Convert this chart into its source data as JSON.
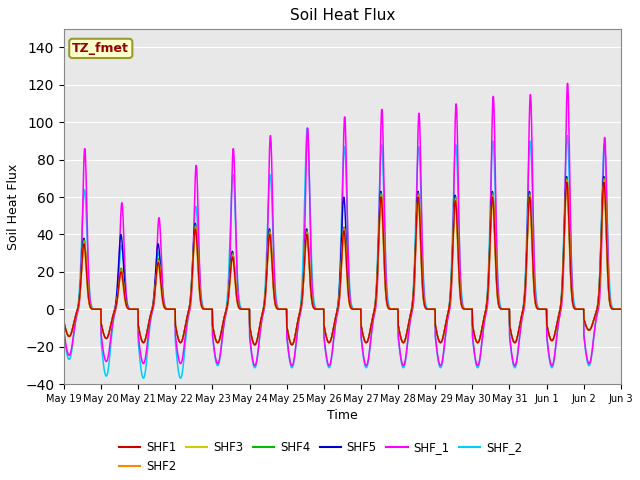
{
  "title": "Soil Heat Flux",
  "ylabel": "Soil Heat Flux",
  "xlabel": "Time",
  "annotation_text": "TZ_fmet",
  "annotation_bg": "#ffffcc",
  "annotation_border": "#999933",
  "annotation_text_color": "#990000",
  "ylim": [
    -40,
    150
  ],
  "yticks": [
    -40,
    -20,
    0,
    20,
    40,
    60,
    80,
    100,
    120,
    140
  ],
  "series_colors": {
    "SHF1": "#cc0000",
    "SHF2": "#ff8800",
    "SHF3": "#cccc00",
    "SHF4": "#00bb00",
    "SHF5": "#0000cc",
    "SHF_1": "#ff00ff",
    "SHF_2": "#00ccff"
  },
  "plot_bg": "#e8e8e8",
  "tick_labels": [
    "May 19",
    "May 20",
    "May 21",
    "May 22",
    "May 23",
    "May 24",
    "May 25",
    "May 26",
    "May 27",
    "May 28",
    "May 29",
    "May 30",
    "May 31",
    "Jun 1",
    "Jun 2",
    "Jun 3"
  ],
  "shf1_peaks": [
    35,
    20,
    25,
    43,
    28,
    40,
    40,
    42,
    60,
    60,
    58,
    60,
    60,
    68,
    68,
    0
  ],
  "shf2_peaks": [
    36,
    21,
    26,
    44,
    29,
    41,
    41,
    43,
    61,
    61,
    59,
    61,
    61,
    69,
    69,
    0
  ],
  "shf3_peaks": [
    33,
    18,
    23,
    41,
    27,
    39,
    39,
    40,
    58,
    58,
    56,
    58,
    58,
    66,
    66,
    0
  ],
  "shf4_peaks": [
    37,
    22,
    27,
    45,
    30,
    42,
    42,
    44,
    62,
    62,
    60,
    62,
    62,
    70,
    70,
    0
  ],
  "shf5_peaks": [
    38,
    40,
    35,
    46,
    31,
    43,
    43,
    60,
    63,
    63,
    61,
    63,
    63,
    71,
    71,
    0
  ],
  "shf_1_peaks": [
    86,
    57,
    49,
    77,
    86,
    93,
    97,
    103,
    107,
    105,
    110,
    114,
    115,
    121,
    92,
    0
  ],
  "shf_2_peaks": [
    64,
    34,
    30,
    55,
    72,
    72,
    97,
    87,
    88,
    87,
    88,
    90,
    90,
    93,
    88,
    0
  ],
  "shf1_nights": [
    -13,
    -14,
    -16,
    -16,
    -16,
    -17,
    -17,
    -16,
    -16,
    -16,
    -16,
    -16,
    -16,
    -15,
    -10,
    0
  ],
  "shf_1_nights": [
    -22,
    -25,
    -26,
    -26,
    -26,
    -27,
    -27,
    -27,
    -27,
    -27,
    -27,
    -27,
    -27,
    -27,
    -26,
    0
  ],
  "shf_2_nights": [
    -24,
    -32,
    -33,
    -33,
    -27,
    -28,
    -28,
    -28,
    -28,
    -28,
    -28,
    -28,
    -28,
    -28,
    -27,
    0
  ]
}
